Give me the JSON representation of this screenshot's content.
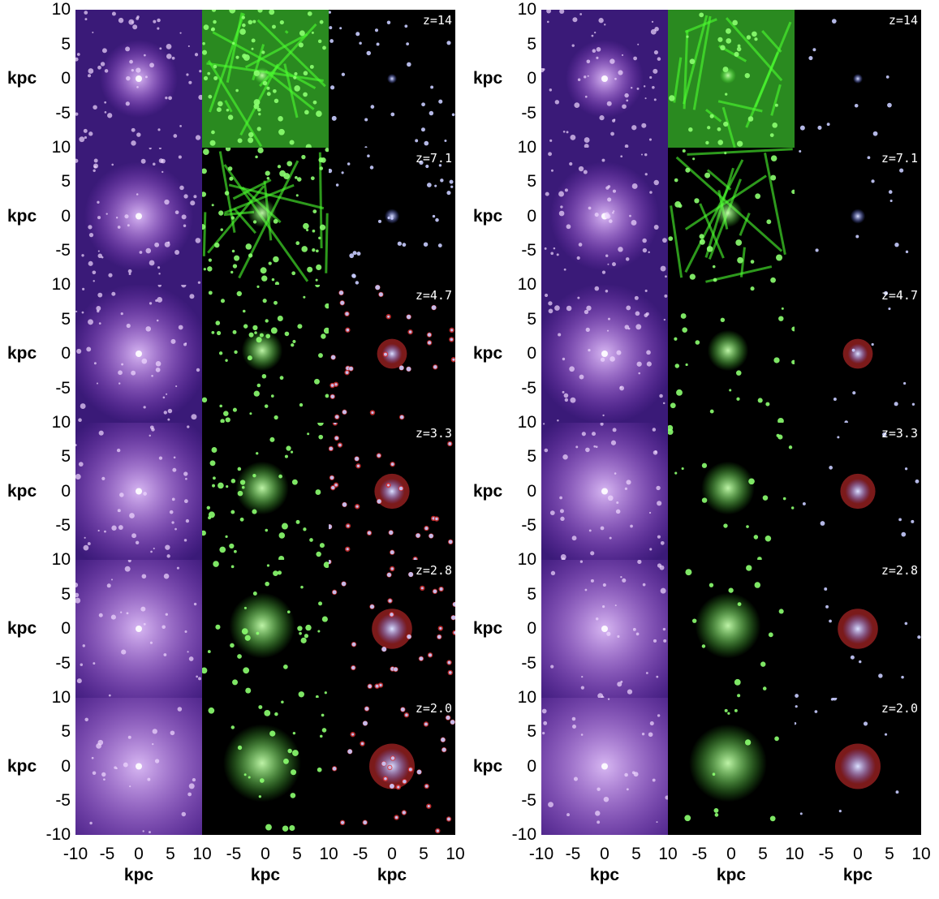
{
  "rows": [
    "z=14",
    "z=7.1",
    "z=4.7",
    "z=3.3",
    "z=2.8",
    "z=2.0"
  ],
  "ytick_labels": [
    "10",
    "5",
    "0",
    "-5",
    "10",
    "5",
    "0",
    "-5",
    "10",
    "5",
    "0",
    "-5",
    "10",
    "5",
    "0",
    "-5",
    "10",
    "5",
    "0",
    "-5",
    "10",
    "5",
    "0",
    "-5",
    "-10"
  ],
  "xtick_labels": [
    "-10",
    "-5",
    "0",
    "5",
    "10",
    "-5",
    "0",
    "5",
    "10",
    "-5",
    "0",
    "5",
    "10"
  ],
  "axis_label": "kpc",
  "columns": [
    "dark-matter",
    "gas",
    "stars"
  ],
  "colors": {
    "dark_matter": "#b050e8",
    "gas": "#4cff30",
    "stars": "#5a6cff",
    "star_outline": "#e03030"
  }
}
